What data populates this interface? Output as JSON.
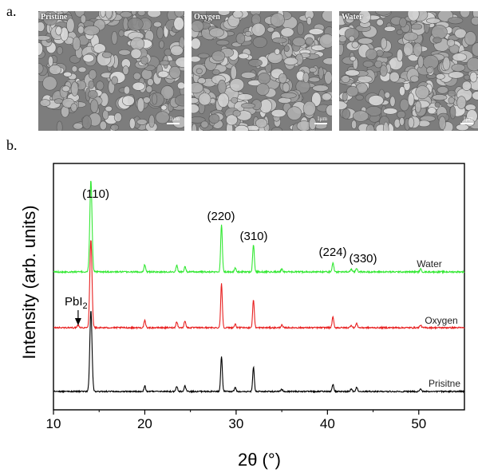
{
  "panels": {
    "a_label": "a.",
    "b_label": "b."
  },
  "sem_images": [
    {
      "label": "Pristine",
      "scale": "1μm"
    },
    {
      "label": "Oxygen",
      "scale": "1μm"
    },
    {
      "label": "Water",
      "scale": "1μm"
    }
  ],
  "chart_data": {
    "type": "line",
    "xlabel": "2θ (°)",
    "ylabel": "Intensity (arb. units)",
    "xlim": [
      10,
      55
    ],
    "xticks": [
      10,
      20,
      30,
      40,
      50
    ],
    "y_ticks_shown": false,
    "series": [
      {
        "name": "Water",
        "color": "#33e833",
        "peaks": [
          [
            14.1,
            100
          ],
          [
            20.0,
            8
          ],
          [
            23.5,
            7
          ],
          [
            24.4,
            6
          ],
          [
            28.4,
            52
          ],
          [
            29.9,
            4
          ],
          [
            31.9,
            30
          ],
          [
            35.0,
            3
          ],
          [
            40.6,
            10
          ],
          [
            42.6,
            3
          ],
          [
            43.2,
            4
          ],
          [
            50.2,
            3
          ]
        ]
      },
      {
        "name": "Oxygen",
        "color": "#e82020",
        "peaks": [
          [
            12.7,
            3
          ],
          [
            14.1,
            100
          ],
          [
            20.0,
            8
          ],
          [
            23.5,
            7
          ],
          [
            24.4,
            8
          ],
          [
            28.4,
            50
          ],
          [
            29.9,
            4
          ],
          [
            31.9,
            32
          ],
          [
            35.0,
            3
          ],
          [
            40.6,
            12
          ],
          [
            42.6,
            3
          ],
          [
            43.2,
            5
          ],
          [
            50.2,
            3
          ]
        ]
      },
      {
        "name": "Prisitne",
        "color": "#000000",
        "peaks": [
          [
            14.1,
            100
          ],
          [
            20.0,
            7
          ],
          [
            23.5,
            6
          ],
          [
            24.4,
            7
          ],
          [
            28.4,
            44
          ],
          [
            29.9,
            5
          ],
          [
            31.9,
            30
          ],
          [
            35.0,
            3
          ],
          [
            40.6,
            9
          ],
          [
            42.6,
            3
          ],
          [
            43.2,
            5
          ],
          [
            50.2,
            3
          ]
        ]
      }
    ],
    "annotations": [
      {
        "text": "(110)",
        "x": 14.1
      },
      {
        "text": "(220)",
        "x": 28.4
      },
      {
        "text": "(310)",
        "x": 31.9
      },
      {
        "text": "(224)",
        "x": 40.6
      },
      {
        "text": "(330)",
        "x": 43.2
      }
    ],
    "arrow_annotation": {
      "text": "PbI",
      "subscript": "2",
      "x": 12.7,
      "series": "Oxygen"
    }
  }
}
